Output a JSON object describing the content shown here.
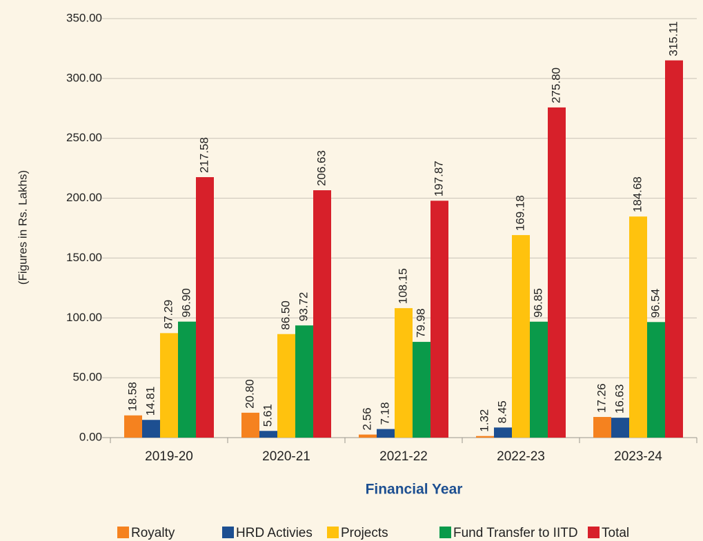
{
  "chart_data": {
    "type": "bar",
    "x_label": "Financial Year",
    "y_label": "(Figures in Rs. Lakhs)",
    "categories": [
      "2019-20",
      "2020-21",
      "2021-22",
      "2022-23",
      "2023-24"
    ],
    "series": [
      {
        "name": "Royalty",
        "color": "#f5821f",
        "values": [
          18.58,
          20.8,
          2.56,
          1.32,
          17.26
        ],
        "value_labels": [
          "18.58",
          "20.80",
          "2.56",
          "1.32",
          "17.26"
        ]
      },
      {
        "name": "HRD Activies",
        "color": "#1d4f91",
        "values": [
          14.81,
          5.61,
          7.18,
          8.45,
          16.63
        ],
        "value_labels": [
          "14.81",
          "5.61",
          "7.18",
          "8.45",
          "16.63"
        ]
      },
      {
        "name": "Projects",
        "color": "#ffc20e",
        "values": [
          87.29,
          86.5,
          108.15,
          169.18,
          184.68
        ],
        "value_labels": [
          "87.29",
          "86.50",
          "108.15",
          "169.18",
          "184.68"
        ]
      },
      {
        "name": "Fund Transfer to IITD",
        "color": "#0a9a4a",
        "values": [
          96.9,
          93.72,
          79.98,
          96.85,
          96.54
        ],
        "value_labels": [
          "96.90",
          "93.72",
          "79.98",
          "96.85",
          "96.54"
        ]
      },
      {
        "name": "Total",
        "color": "#d7202a",
        "values": [
          217.58,
          206.63,
          197.87,
          275.8,
          315.11
        ],
        "value_labels": [
          "217.58",
          "206.63",
          "197.87",
          "275.80",
          "315.11"
        ]
      }
    ],
    "ylim": [
      0,
      350
    ],
    "yticks": [
      {
        "value": 0,
        "label": "0.00"
      },
      {
        "value": 50,
        "label": "50.00"
      },
      {
        "value": 100,
        "label": "100.00"
      },
      {
        "value": 150,
        "label": "150.00"
      },
      {
        "value": 200,
        "label": "200.00"
      },
      {
        "value": 250,
        "label": "250.00"
      },
      {
        "value": 300,
        "label": "300.00"
      },
      {
        "value": 350,
        "label": "350.00"
      }
    ],
    "grid": true,
    "legend": "bottom"
  }
}
